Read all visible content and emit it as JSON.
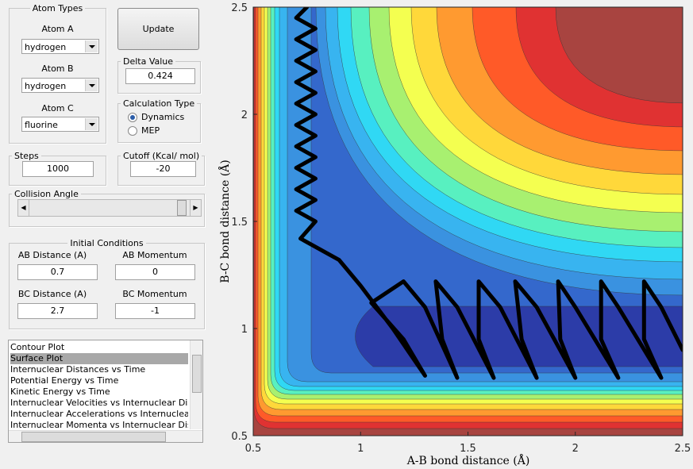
{
  "controls": {
    "atom_types": {
      "title": "Atom Types",
      "labels": [
        "Atom A",
        "Atom B",
        "Atom C"
      ],
      "values": [
        "hydrogen",
        "hydrogen",
        "fluorine"
      ]
    },
    "update": "Update",
    "delta": {
      "title": "Delta Value",
      "value": 0.424
    },
    "calc_type": {
      "title": "Calculation Type",
      "options": [
        "Dynamics",
        "MEP"
      ],
      "selected": 0
    },
    "steps": {
      "title": "Steps",
      "value": 1000
    },
    "cutoff": {
      "title": "Cutoff (Kcal/ mol)",
      "value": -20
    },
    "collision": {
      "title": "Collision Angle"
    },
    "initial": {
      "title": "Initial Conditions",
      "labels": [
        "AB Distance (A)",
        "AB Momentum",
        "BC Distance (A)",
        "BC Momentum"
      ],
      "values": [
        0.7,
        0,
        2.7,
        -1
      ]
    },
    "plot_list": {
      "items": [
        "Contour Plot",
        "Surface Plot",
        "Internuclear Distances vs Time",
        "Potential Energy vs Time",
        "Kinetic Energy vs Time",
        "Internuclear Velocities vs Internuclear Distance",
        "Internuclear Accelerations vs Internuclear Dista",
        "Internuclear Momenta vs Internuclear Distance"
      ],
      "selected": 1
    }
  },
  "chart_data": {
    "type": "line",
    "x_label": "A-B bond distance (Å)",
    "y_label": "B-C bond distance (Å)",
    "xlim": [
      0.5,
      2.5
    ],
    "ylim": [
      0.5,
      2.5
    ],
    "xticks": [
      0.5,
      1,
      1.5,
      2,
      2.5
    ],
    "yticks": [
      0.5,
      1,
      1.5,
      2,
      2.5
    ],
    "color": "#000000",
    "x": [
      0.75,
      0.7,
      0.79,
      0.7,
      0.79,
      0.7,
      0.79,
      0.7,
      0.79,
      0.7,
      0.79,
      0.7,
      0.79,
      0.7,
      0.79,
      0.7,
      0.79,
      0.7,
      0.79,
      0.7,
      0.79,
      0.72,
      0.9,
      1.0,
      1.15,
      1.3,
      1.2,
      1.05,
      1.2,
      1.3,
      1.45,
      1.38,
      1.35,
      1.45,
      1.62,
      1.55,
      1.55,
      1.65,
      1.82,
      1.75,
      1.72,
      1.82,
      2.0,
      1.93,
      1.92,
      2.0,
      2.2,
      2.12,
      2.12,
      2.2,
      2.4,
      2.32,
      2.32,
      2.4,
      2.5
    ],
    "values": [
      2.5,
      2.45,
      2.4,
      2.35,
      2.3,
      2.25,
      2.2,
      2.15,
      2.1,
      2.05,
      2.0,
      1.95,
      1.9,
      1.85,
      1.8,
      1.75,
      1.7,
      1.65,
      1.6,
      1.55,
      1.5,
      1.42,
      1.32,
      1.2,
      1.0,
      0.78,
      0.95,
      1.12,
      1.22,
      1.1,
      0.77,
      0.95,
      1.22,
      1.1,
      0.77,
      0.95,
      1.22,
      1.1,
      0.77,
      0.95,
      1.22,
      1.1,
      0.77,
      0.95,
      1.22,
      1.1,
      0.77,
      0.95,
      1.22,
      1.1,
      0.77,
      0.95,
      1.22,
      1.1,
      0.9
    ]
  }
}
